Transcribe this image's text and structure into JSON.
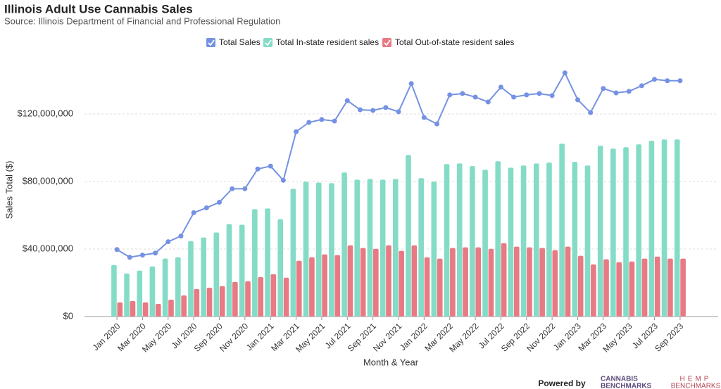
{
  "chart_data": {
    "type": "bar_line",
    "title": "Illinois Adult Use Cannabis Sales",
    "subtitle": "Source: Illinois Department of Financial and Professional Regulation",
    "x_label": "Month & Year",
    "y_label": "Sales Total ($)",
    "categories": [
      "Jan 2020",
      null,
      "Mar 2020",
      null,
      "May 2020",
      null,
      "Jul 2020",
      null,
      "Sep 2020",
      null,
      "Nov 2020",
      null,
      "Jan 2021",
      null,
      "Mar 2021",
      null,
      "May 2021",
      null,
      "Jul 2021",
      null,
      "Sep 2021",
      null,
      "Nov 2021",
      null,
      "Jan 2022",
      null,
      "Mar 2022",
      null,
      "May 2022",
      null,
      "Jul 2022",
      null,
      "Sep 2022",
      null,
      "Nov 2022",
      null,
      "Jan 2023",
      null,
      "Mar 2023",
      null,
      "May 2023",
      null,
      "Jul 2023",
      null,
      "Sep 2023"
    ],
    "series": [
      {
        "name": "Total Sales",
        "color": "#7592e2",
        "kind": "line",
        "values": [
          39700000,
          35100000,
          36400000,
          37600000,
          44300000,
          47700000,
          61500000,
          64400000,
          67700000,
          75700000,
          75700000,
          87400000,
          89100000,
          80700000,
          109500000,
          115000000,
          116700000,
          115800000,
          127900000,
          122500000,
          122100000,
          123800000,
          121300000,
          138000000,
          117900000,
          114100000,
          131300000,
          132100000,
          130000000,
          127100000,
          135900000,
          130000000,
          131300000,
          132100000,
          130900000,
          144300000,
          128400000,
          120800000,
          135100000,
          132500000,
          133400000,
          136700000,
          140500000,
          139700000,
          139700000
        ]
      },
      {
        "name": "Total In-state resident sales",
        "color": "#84dcc6",
        "kind": "bar",
        "values": [
          30500000,
          25500000,
          27200000,
          29700000,
          34300000,
          35100000,
          44700000,
          46800000,
          49800000,
          54800000,
          54400000,
          63600000,
          64000000,
          57700000,
          75700000,
          79900000,
          79400000,
          79000000,
          85300000,
          81100000,
          81500000,
          81100000,
          81500000,
          95700000,
          82000000,
          79900000,
          90300000,
          90700000,
          89100000,
          87000000,
          92000000,
          88200000,
          89500000,
          90700000,
          91200000,
          102400000,
          91600000,
          89500000,
          101200000,
          99500000,
          100300000,
          102000000,
          104100000,
          104900000,
          104900000
        ]
      },
      {
        "name": "Total Out-of-state resident sales",
        "color": "#e87a84",
        "kind": "bar",
        "values": [
          8400000,
          9200000,
          8400000,
          7500000,
          10000000,
          12500000,
          16300000,
          17100000,
          18000000,
          20500000,
          20900000,
          23400000,
          25100000,
          23000000,
          33000000,
          35100000,
          36800000,
          36400000,
          42200000,
          40600000,
          40100000,
          42200000,
          38900000,
          42200000,
          35100000,
          34300000,
          40600000,
          41000000,
          41000000,
          40100000,
          43500000,
          41400000,
          41000000,
          40600000,
          39300000,
          41400000,
          36000000,
          30900000,
          33900000,
          32200000,
          32600000,
          34300000,
          35500000,
          34300000,
          34300000
        ]
      }
    ],
    "ylim": [
      0,
      150000000
    ],
    "yticks": [
      {
        "value": 0,
        "label": "$0"
      },
      {
        "value": 40000000,
        "label": "$40,000,000"
      },
      {
        "value": 80000000,
        "label": "$80,000,000"
      },
      {
        "value": 120000000,
        "label": "$120,000,000"
      }
    ],
    "grid": true
  },
  "footer": {
    "powered_by": "Powered by",
    "logo1_line1": "CANNABIS",
    "logo1_line2": "BENCHMARKS",
    "logo2_line1": "HEMP",
    "logo2_line2": "BENCHMARKS"
  }
}
